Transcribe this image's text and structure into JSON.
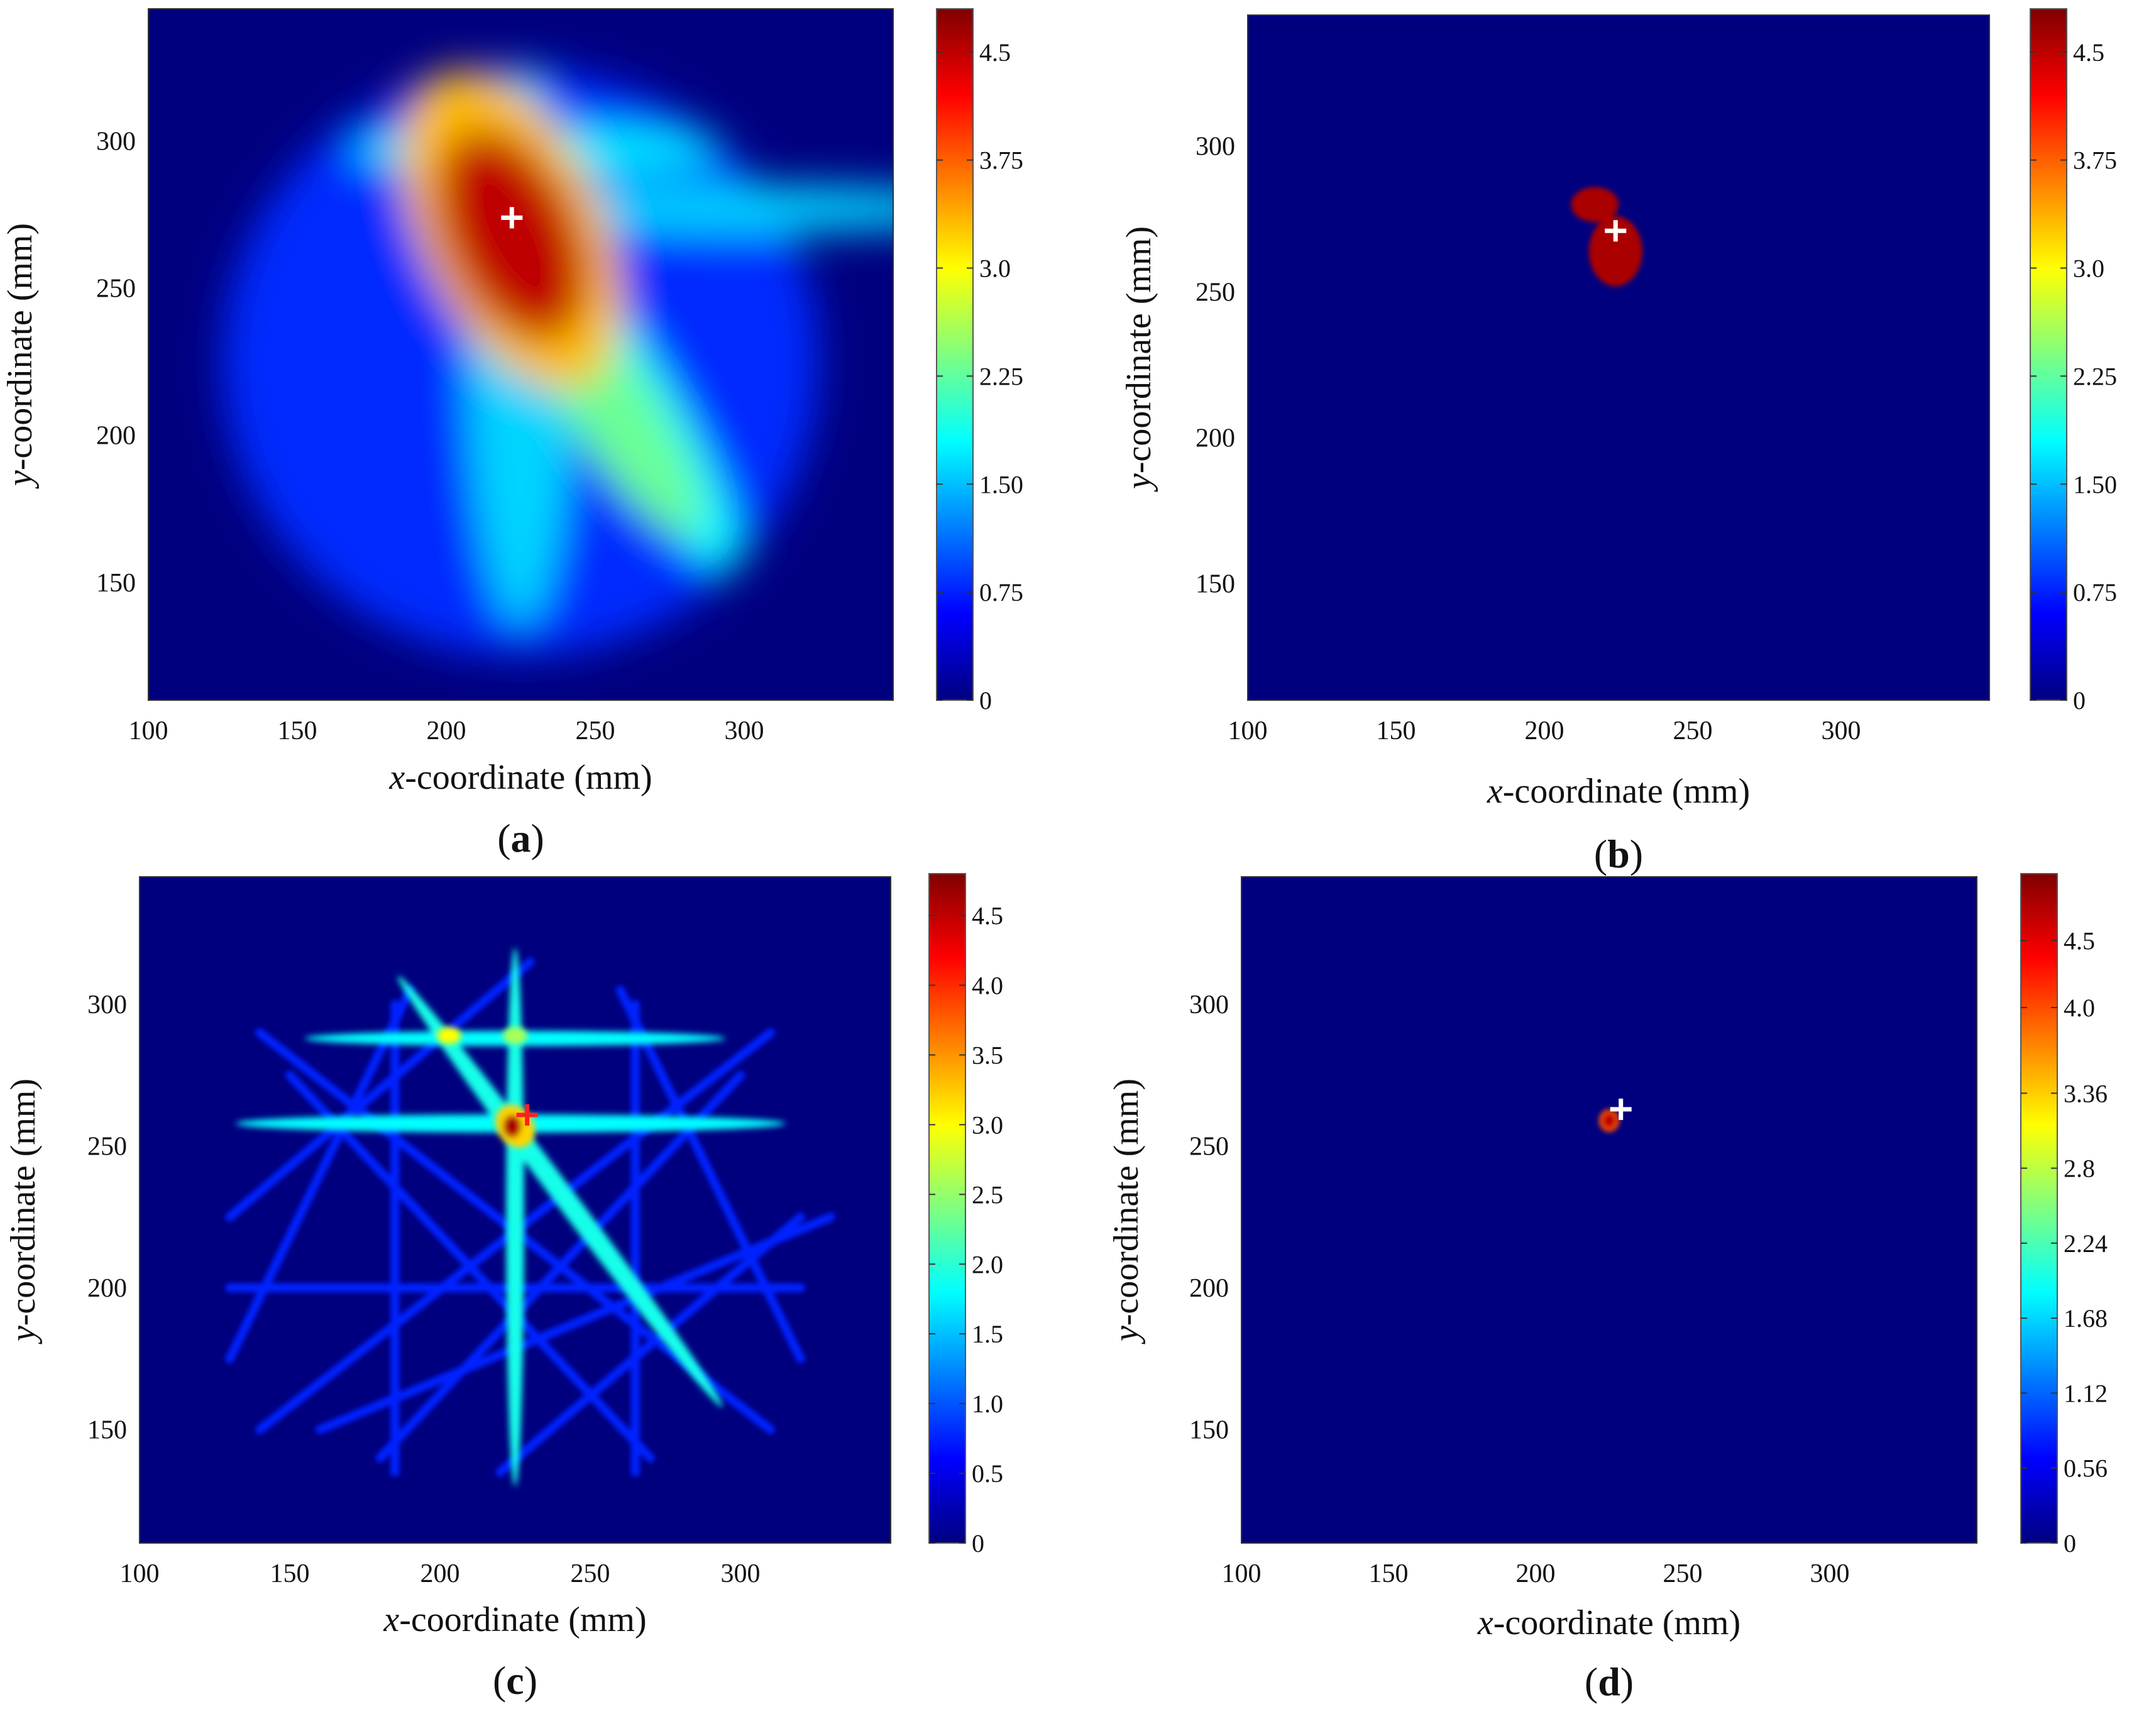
{
  "colorbar_colors": [
    "#00007f",
    "#0000ff",
    "#007fff",
    "#00ffff",
    "#7fff7f",
    "#ffff00",
    "#ff7f00",
    "#ff0000",
    "#7f0000"
  ],
  "chart_data": [
    {
      "type": "heatmap",
      "panel_label": "(a)",
      "xlabel_var": "x",
      "xlabel_rest": "-coordinate (mm)",
      "ylabel_var": "y",
      "ylabel_rest": "-coordinate (mm)",
      "xlim": [
        100,
        350
      ],
      "ylim": [
        110,
        345
      ],
      "x_ticks": [
        100,
        150,
        200,
        250,
        300
      ],
      "y_ticks": [
        150,
        200,
        250,
        300
      ],
      "colorbar_range": [
        0,
        4.8
      ],
      "colorbar_ticks": [
        {
          "value": 0,
          "label": "0"
        },
        {
          "value": 0.75,
          "label": "0.75"
        },
        {
          "value": 1.5,
          "label": "1.50"
        },
        {
          "value": 2.25,
          "label": "2.25"
        },
        {
          "value": 3.0,
          "label": "3.0"
        },
        {
          "value": 3.75,
          "label": "3.75"
        },
        {
          "value": 4.5,
          "label": "4.5"
        }
      ],
      "marker": {
        "x": 222,
        "y": 274,
        "color": "#ffffff"
      },
      "blobs": [
        {
          "x": 225,
          "y": 225,
          "rx": 100,
          "ry": 100,
          "value": 0.8
        },
        {
          "x": 300,
          "y": 277,
          "rx": 82,
          "ry": 8,
          "value": 1.6
        },
        {
          "x": 230,
          "y": 297,
          "rx": 62,
          "ry": 9,
          "value": 1.7
        },
        {
          "x": 225,
          "y": 230,
          "rx": 18,
          "ry": 95,
          "value": 1.6
        },
        {
          "x": 253,
          "y": 222,
          "rx": 16,
          "ry": 80,
          "rotate": -33,
          "value": 1.8
        },
        {
          "x": 255,
          "y": 210,
          "rx": 14,
          "ry": 52,
          "rotate": -33,
          "value": 2.3
        },
        {
          "x": 222,
          "y": 270,
          "rx": 30,
          "ry": 58,
          "rotate": -25,
          "value": 3.3
        },
        {
          "x": 222,
          "y": 268,
          "rx": 22,
          "ry": 38,
          "rotate": -25,
          "value": 4.5
        }
      ]
    },
    {
      "type": "heatmap",
      "panel_label": "(b)",
      "xlabel_var": "x",
      "xlabel_rest": "-coordinate (mm)",
      "ylabel_var": "y",
      "ylabel_rest": "-coordinate (mm)",
      "xlim": [
        100,
        350
      ],
      "ylim": [
        110,
        345
      ],
      "x_ticks": [
        100,
        150,
        200,
        250,
        300
      ],
      "y_ticks": [
        150,
        200,
        250,
        300
      ],
      "colorbar_range": [
        0,
        4.8
      ],
      "colorbar_ticks": [
        {
          "value": 0,
          "label": "0"
        },
        {
          "value": 0.75,
          "label": "0.75"
        },
        {
          "value": 1.5,
          "label": "1.50"
        },
        {
          "value": 2.25,
          "label": "2.25"
        },
        {
          "value": 3.0,
          "label": "3.0"
        },
        {
          "value": 3.75,
          "label": "3.75"
        },
        {
          "value": 4.5,
          "label": "4.5"
        }
      ],
      "marker": {
        "x": 224,
        "y": 271,
        "color": "#ffffff"
      },
      "blobs": [
        {
          "x": 217,
          "y": 280,
          "rx": 8,
          "ry": 6,
          "value": 4.6
        },
        {
          "x": 224,
          "y": 264,
          "rx": 9,
          "ry": 12,
          "value": 4.6
        }
      ]
    },
    {
      "type": "heatmap",
      "panel_label": "(c)",
      "xlabel_var": "x",
      "xlabel_rest": "-coordinate (mm)",
      "ylabel_var": "y",
      "ylabel_rest": "-coordinate (mm)",
      "xlim": [
        100,
        350
      ],
      "ylim": [
        110,
        345
      ],
      "x_ticks": [
        100,
        150,
        200,
        250,
        300
      ],
      "y_ticks": [
        150,
        200,
        250,
        300
      ],
      "colorbar_range": [
        0,
        4.8
      ],
      "colorbar_ticks": [
        {
          "value": 0,
          "label": "0"
        },
        {
          "value": 0.5,
          "label": "0.5"
        },
        {
          "value": 1.0,
          "label": "1.0"
        },
        {
          "value": 1.5,
          "label": "1.5"
        },
        {
          "value": 2.0,
          "label": "2.0"
        },
        {
          "value": 2.5,
          "label": "2.5"
        },
        {
          "value": 3.0,
          "label": "3.0"
        },
        {
          "value": 3.5,
          "label": "3.5"
        },
        {
          "value": 4.0,
          "label": "4.0"
        },
        {
          "value": 4.5,
          "label": "4.5"
        }
      ],
      "marker": {
        "x": 229,
        "y": 261,
        "color": "#ff2020"
      },
      "lines": [
        {
          "x1": 155,
          "y1": 288,
          "x2": 295,
          "y2": 288,
          "width": 2.5,
          "value": 1.8
        },
        {
          "x1": 132,
          "y1": 258,
          "x2": 315,
          "y2": 258,
          "width": 3,
          "value": 1.8
        },
        {
          "x1": 225,
          "y1": 130,
          "x2": 225,
          "y2": 320,
          "width": 3,
          "value": 1.9
        },
        {
          "x1": 186,
          "y1": 310,
          "x2": 294,
          "y2": 158,
          "width": 3.5,
          "value": 1.9
        }
      ],
      "faint_lines": [
        {
          "x1": 130,
          "y1": 175,
          "x2": 190,
          "y2": 305
        },
        {
          "x1": 320,
          "y1": 175,
          "x2": 260,
          "y2": 305
        },
        {
          "x1": 140,
          "y1": 290,
          "x2": 310,
          "y2": 150
        },
        {
          "x1": 140,
          "y1": 150,
          "x2": 310,
          "y2": 290
        },
        {
          "x1": 130,
          "y1": 225,
          "x2": 230,
          "y2": 315
        },
        {
          "x1": 320,
          "y1": 225,
          "x2": 220,
          "y2": 135
        },
        {
          "x1": 160,
          "y1": 150,
          "x2": 330,
          "y2": 225
        },
        {
          "x1": 130,
          "y1": 200,
          "x2": 320,
          "y2": 200
        },
        {
          "x1": 185,
          "y1": 135,
          "x2": 185,
          "y2": 300
        },
        {
          "x1": 265,
          "y1": 135,
          "x2": 265,
          "y2": 300
        },
        {
          "x1": 150,
          "y1": 275,
          "x2": 270,
          "y2": 140
        },
        {
          "x1": 180,
          "y1": 140,
          "x2": 300,
          "y2": 275
        }
      ],
      "blobs": [
        {
          "x": 203,
          "y": 289,
          "rx": 4,
          "ry": 3,
          "value": 3.0
        },
        {
          "x": 225,
          "y": 289,
          "rx": 4,
          "ry": 3,
          "value": 2.6
        },
        {
          "x": 225,
          "y": 257,
          "rx": 6,
          "ry": 8,
          "rotate": -35,
          "value": 3.2
        },
        {
          "x": 224,
          "y": 257,
          "rx": 3,
          "ry": 4,
          "value": 4.6
        }
      ]
    },
    {
      "type": "heatmap",
      "panel_label": "(d)",
      "xlabel_var": "x",
      "xlabel_rest": "-coordinate (mm)",
      "ylabel_var": "y",
      "ylabel_rest": "-coordinate (mm)",
      "xlim": [
        100,
        350
      ],
      "ylim": [
        110,
        345
      ],
      "x_ticks": [
        100,
        150,
        200,
        250,
        300
      ],
      "y_ticks": [
        150,
        200,
        250,
        300
      ],
      "colorbar_range": [
        0,
        5.0
      ],
      "colorbar_ticks": [
        {
          "value": 0,
          "label": "0"
        },
        {
          "value": 0.56,
          "label": "0.56"
        },
        {
          "value": 1.12,
          "label": "1.12"
        },
        {
          "value": 1.68,
          "label": "1.68"
        },
        {
          "value": 2.24,
          "label": "2.24"
        },
        {
          "value": 2.8,
          "label": "2.8"
        },
        {
          "value": 3.36,
          "label": "3.36"
        },
        {
          "value": 4.0,
          "label": "4.0"
        },
        {
          "value": 4.5,
          "label": "4.5"
        }
      ],
      "marker": {
        "x": 229,
        "y": 263,
        "color": "#ffffff"
      },
      "blobs": [
        {
          "x": 225,
          "y": 259,
          "rx": 3.5,
          "ry": 4,
          "value": 4.0
        },
        {
          "x": 225,
          "y": 259,
          "rx": 2.2,
          "ry": 2.6,
          "value": 4.7
        }
      ]
    }
  ]
}
